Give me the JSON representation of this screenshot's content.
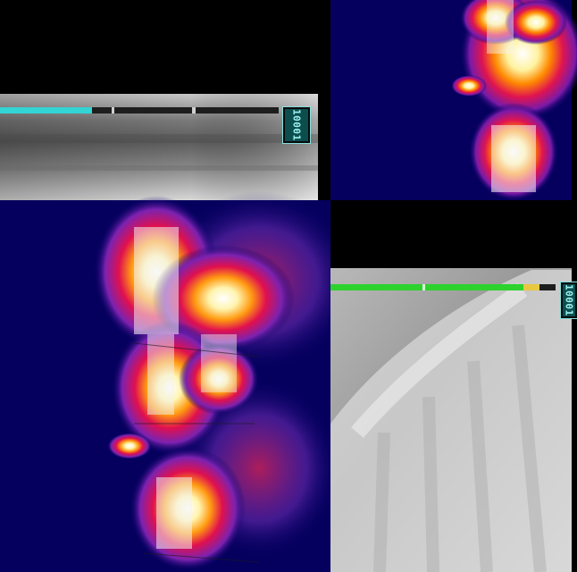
{
  "panels": {
    "top_left": {
      "frame_id": "10001",
      "progress_fraction": 0.33,
      "colors": {
        "bar": "#33d4d4",
        "track": "#1e1e1e",
        "fill": "#cfcfcf"
      }
    },
    "top_right": {
      "colormap": "ironbow-thermal"
    },
    "bottom_left": {
      "colormap": "ironbow-thermal"
    },
    "bottom_right": {
      "frame_id": "10001",
      "progress_fraction": 0.86,
      "colors": {
        "bar": "#2dd22d",
        "marker": "#e8c840",
        "track": "#1e1e1e"
      }
    }
  }
}
